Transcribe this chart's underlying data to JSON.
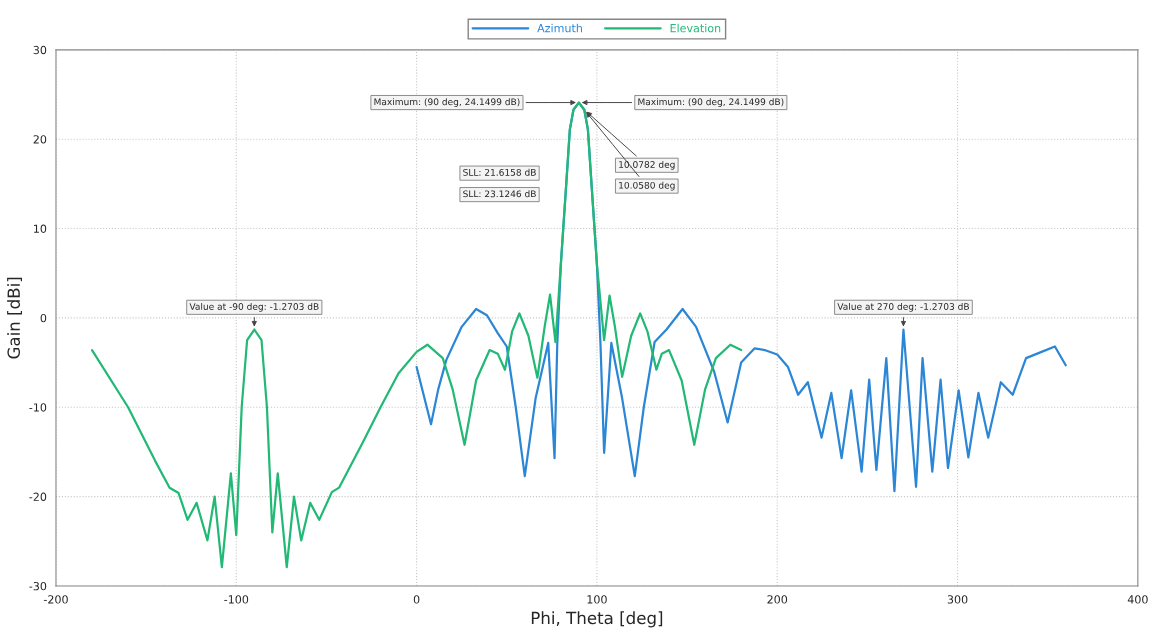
{
  "chart_data": {
    "type": "line",
    "xlabel": "Phi, Theta [deg]",
    "ylabel": "Gain [dBi]",
    "xlim": [
      -200,
      400
    ],
    "xticks": [
      -200,
      -100,
      0,
      100,
      200,
      300,
      400
    ],
    "ylim": [
      -30,
      30
    ],
    "yticks": [
      -30,
      -20,
      -10,
      0,
      10,
      20,
      30
    ],
    "grid": true,
    "legend": "top",
    "line_style": "solid",
    "marker": "none",
    "series": [
      {
        "name": "Azimuth",
        "color": "#2b86d6",
        "x": [
          0,
          8,
          12,
          16.5,
          25,
          33,
          39,
          45,
          50,
          55,
          60,
          66,
          73,
          76.5,
          78,
          80,
          83,
          85,
          87,
          90,
          93,
          95,
          97,
          100,
          102,
          104,
          108,
          114,
          121,
          126,
          132,
          138.6,
          147.5,
          155,
          165,
          172.5,
          180,
          187.5,
          193,
          200,
          206,
          211.6,
          217,
          224.6,
          230,
          235.7,
          241,
          246.8,
          251,
          255,
          260.5,
          265,
          270,
          277,
          280.6,
          286,
          290.6,
          294.7,
          300.6,
          306,
          311.6,
          317,
          324,
          330.6,
          338,
          346.6,
          354,
          360
        ],
        "values": [
          -5.5,
          -11.9,
          -8,
          -4.7,
          -1,
          1.0,
          0.3,
          -1.7,
          -3.2,
          -10,
          -17.7,
          -9,
          -2.8,
          -15.7,
          -3,
          6,
          15,
          21.1,
          23.3,
          24.1,
          23.3,
          21.1,
          15,
          6,
          -3,
          -15.1,
          -2.8,
          -9,
          -17.7,
          -10,
          -2.7,
          -1.3,
          1.0,
          -1,
          -6,
          -11.7,
          -5,
          -3.4,
          -3.6,
          -4.1,
          -5.5,
          -8.6,
          -7.2,
          -13.4,
          -8.4,
          -15.7,
          -8.1,
          -17.2,
          -6.9,
          -17.0,
          -4.5,
          -19.4,
          -1.3,
          -18.9,
          -4.5,
          -17.2,
          -6.9,
          -16.8,
          -8.1,
          -15.6,
          -8.4,
          -13.4,
          -7.2,
          -8.6,
          -4.5,
          -3.8,
          -3.2,
          -5.3
        ]
      },
      {
        "name": "Elevation",
        "color": "#22b875",
        "x": [
          -180,
          -160,
          -145,
          -137,
          -132,
          -127,
          -122,
          -116,
          -112,
          -108,
          -103,
          -100,
          -97,
          -94,
          -90,
          -86,
          -83,
          -80,
          -77,
          -72,
          -68,
          -64,
          -59,
          -54,
          -47,
          -43,
          -30,
          -20,
          -10,
          0,
          6,
          14.5,
          20,
          26.6,
          33,
          40.5,
          45,
          49,
          53,
          57,
          62,
          67,
          71,
          74,
          77,
          80,
          83,
          85,
          87,
          90,
          93,
          95,
          97,
          100,
          104,
          107,
          110,
          114,
          119,
          124,
          128,
          133,
          136,
          140,
          147,
          154,
          160,
          166,
          174,
          180
        ],
        "values": [
          -3.6,
          -10,
          -16,
          -19,
          -19.6,
          -22.6,
          -20.7,
          -24.9,
          -20,
          -27.9,
          -17.4,
          -24.3,
          -10,
          -2.5,
          -1.3,
          -2.5,
          -10,
          -24,
          -17.4,
          -27.9,
          -20,
          -24.9,
          -20.7,
          -22.6,
          -19.5,
          -19,
          -14,
          -10,
          -6.2,
          -3.8,
          -3.0,
          -4.5,
          -8,
          -14.2,
          -7,
          -3.6,
          -4,
          -5.8,
          -1.5,
          0.5,
          -2,
          -6.7,
          -1,
          2.6,
          -2.7,
          6,
          15,
          21.1,
          23.3,
          24.1,
          23.3,
          21.1,
          15,
          6,
          -2.5,
          2.5,
          -1,
          -6.6,
          -2,
          0.5,
          -1.5,
          -5.8,
          -4,
          -3.6,
          -7,
          -14.2,
          -8,
          -4.5,
          -3.0,
          -3.6
        ]
      }
    ],
    "annotations": [
      {
        "text": "Maximum: (90 deg, 24.1499 dB)",
        "x": 90,
        "y": 24.1
      },
      {
        "text": "Maximum: (90 deg, 24.1499 dB)",
        "x": 90,
        "y": 24.1
      },
      "SLL: 21.6158 dB",
      "SLL: 23.1246 dB",
      {
        "text": "10.0782 deg",
        "x": 93,
        "y": 23.3
      },
      {
        "text": "10.0580 deg",
        "x": 93,
        "y": 23.3
      },
      {
        "text": "Value at -90 deg: -1.2703 dB",
        "x": -90,
        "y": -1.3
      },
      {
        "text": "Value at 270 deg: -1.2703 dB",
        "x": 270,
        "y": -1.3
      }
    ]
  }
}
